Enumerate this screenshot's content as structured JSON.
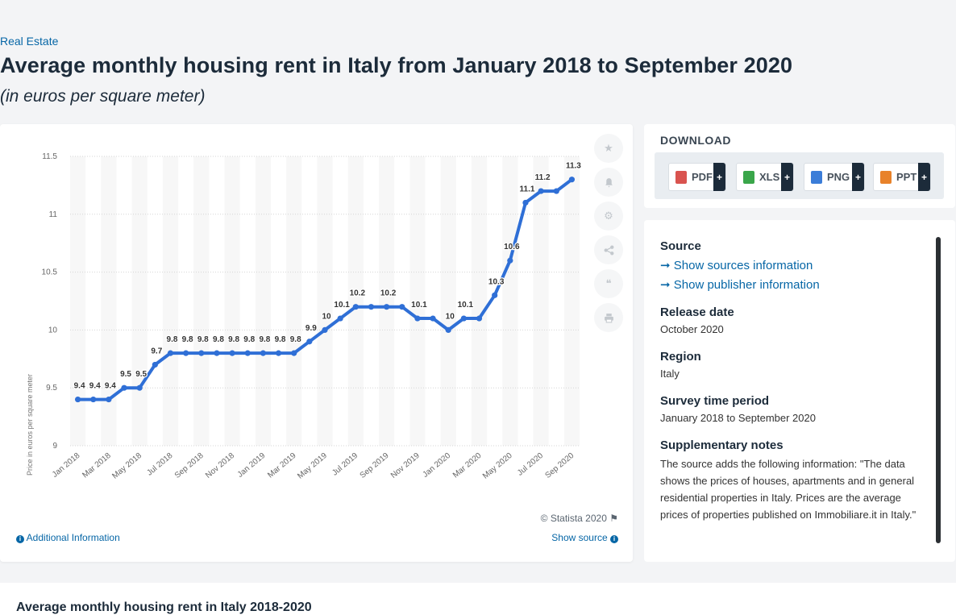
{
  "breadcrumb": "Real Estate",
  "title": "Average monthly housing rent in Italy from January 2018 to September 2020",
  "subtitle": "(in euros per square meter)",
  "chart_data": {
    "type": "line",
    "title": "",
    "xlabel": "",
    "ylabel": "Price in euros per square meter",
    "ylim": [
      9,
      11.5
    ],
    "yticks": [
      "9",
      "9.5",
      "10",
      "10.5",
      "11",
      "11.5"
    ],
    "categories": [
      "Jan 2018",
      "Feb 2018",
      "Mar 2018",
      "Apr 2018",
      "May 2018",
      "Jun 2018",
      "Jul 2018",
      "Aug 2018",
      "Sep 2018",
      "Oct 2018",
      "Nov 2018",
      "Dec 2018",
      "Jan 2019",
      "Feb 2019",
      "Mar 2019",
      "Apr 2019",
      "May 2019",
      "Jun 2019",
      "Jul 2019",
      "Aug 2019",
      "Sep 2019",
      "Oct 2019",
      "Nov 2019",
      "Dec 2019",
      "Jan 2020",
      "Feb 2020",
      "Mar 2020",
      "Apr 2020",
      "May 2020",
      "Jun 2020",
      "Jul 2020",
      "Aug 2020",
      "Sep 2020"
    ],
    "xtick_labels": [
      "Jan 2018",
      "Mar 2018",
      "May 2018",
      "Jul 2018",
      "Sep 2018",
      "Nov 2018",
      "Jan 2019",
      "Mar 2019",
      "May 2019",
      "Jul 2019",
      "Sep 2019",
      "Nov 2019",
      "Jan 2020",
      "Mar 2020",
      "May 2020",
      "Jul 2020",
      "Sep 2020"
    ],
    "values": [
      9.4,
      9.4,
      9.4,
      9.5,
      9.5,
      9.7,
      9.8,
      9.8,
      9.8,
      9.8,
      9.8,
      9.8,
      9.8,
      9.8,
      9.8,
      9.9,
      10,
      10.1,
      10.2,
      10.2,
      10.2,
      10.2,
      10.1,
      10.1,
      10,
      10.1,
      10.1,
      10.3,
      10.6,
      11.1,
      11.2,
      11.2,
      11.3
    ],
    "data_labels": [
      "9.4",
      "9.4",
      "9.4",
      "9.5",
      "9.5",
      "9.7",
      "9.8",
      "9.8",
      "9.8",
      "9.8",
      "9.8",
      "9.8",
      "9.8",
      "9.8",
      "9.8",
      "9.9",
      "10",
      "10.1",
      "10.2",
      "",
      "10.2",
      "",
      "10.1",
      "",
      "10",
      "10.1",
      "",
      "10.3",
      "10.6",
      "11.1",
      "11.2",
      "",
      "11.3"
    ],
    "line_color": "#2f6fd6",
    "grid": true,
    "legend": "none"
  },
  "chart_footer": {
    "copyright": "© Statista 2020",
    "additional_info": "Additional Information",
    "show_source": "Show source"
  },
  "download": {
    "heading": "DOWNLOAD",
    "buttons": [
      {
        "label": "PDF",
        "color": "#d9534f"
      },
      {
        "label": "XLS",
        "color": "#3aa64a"
      },
      {
        "label": "PNG",
        "color": "#3b7dd8"
      },
      {
        "label": "PPT",
        "color": "#e8822a"
      }
    ],
    "plus": "+"
  },
  "meta": {
    "source_heading": "Source",
    "show_sources": "Show sources information",
    "show_publisher": "Show publisher information",
    "release_heading": "Release date",
    "release_value": "October 2020",
    "region_heading": "Region",
    "region_value": "Italy",
    "survey_heading": "Survey time period",
    "survey_value": "January 2018 to September 2020",
    "notes_heading": "Supplementary notes",
    "notes_value": "The source adds the following information: \"The data shows the prices of houses, apartments and in general residential properties in Italy. Prices are the average prices of properties published on Immobiliare.it in Italy.\""
  },
  "bottom_title": "Average monthly housing rent in Italy 2018-2020"
}
